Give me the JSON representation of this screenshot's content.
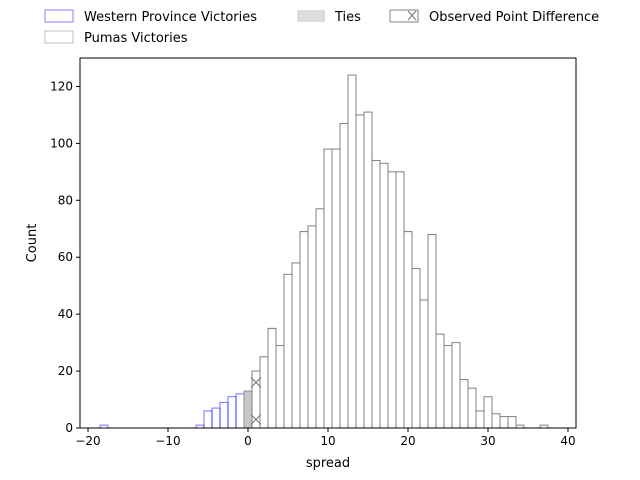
{
  "chart_data": {
    "type": "bar",
    "xlabel": "spread",
    "ylabel": "Count",
    "xlim": [
      -21,
      41
    ],
    "ylim": [
      0,
      130
    ],
    "xticks": [
      -20,
      -10,
      0,
      10,
      20,
      30,
      40
    ],
    "yticks": [
      0,
      20,
      40,
      60,
      80,
      100,
      120
    ],
    "bin_width": 1,
    "legend_position": "top (outside plot, 3 columns)",
    "series": [
      {
        "name": "Western Province Victories",
        "color": "#0000ff",
        "x": [
          -18,
          -6,
          -5,
          -4,
          -3,
          -2,
          -1
        ],
        "values": [
          1,
          1,
          6,
          7,
          9,
          11,
          12
        ]
      },
      {
        "name": "Ties",
        "color": "#c8c8c8",
        "x": [
          0
        ],
        "values": [
          13
        ]
      },
      {
        "name": "Pumas Victories",
        "color": "#808080",
        "x": [
          0,
          1,
          2,
          3,
          4,
          5,
          6,
          7,
          8,
          9,
          10,
          11,
          12,
          13,
          14,
          15,
          16,
          17,
          18,
          19,
          20,
          21,
          22,
          23,
          24,
          25,
          26,
          27,
          28,
          29,
          30,
          31,
          32,
          33,
          34,
          35,
          36,
          37
        ],
        "values": [
          0,
          20,
          25,
          35,
          29,
          54,
          58,
          69,
          71,
          77,
          98,
          98,
          107,
          124,
          110,
          111,
          94,
          93,
          90,
          90,
          69,
          56,
          45,
          68,
          33,
          29,
          30,
          17,
          14,
          6,
          11,
          5,
          4,
          4,
          1,
          0,
          0,
          1
        ]
      }
    ],
    "observed_point_difference": {
      "name": "Observed Point Difference",
      "x": 1,
      "values": [
        3,
        16
      ]
    }
  }
}
